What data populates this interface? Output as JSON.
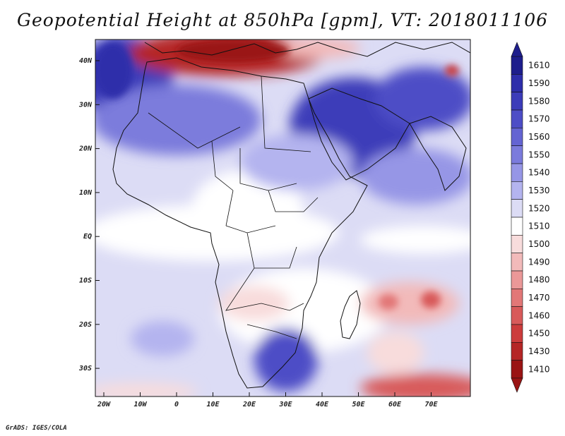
{
  "title": "Geopotential Height at 850hPa [gpm], VT: 2018011106",
  "credit": "GrADS: IGES/COLA",
  "map": {
    "lat_ticks": [
      "40N",
      "30N",
      "20N",
      "10N",
      "EQ",
      "10S",
      "20S",
      "30S"
    ],
    "lon_ticks": [
      "20W",
      "10W",
      "0",
      "10E",
      "20E",
      "30E",
      "40E",
      "50E",
      "60E",
      "70E"
    ],
    "base_color": "#dcdcf5"
  },
  "colorbar": {
    "labels": [
      "1610",
      "1590",
      "1580",
      "1570",
      "1560",
      "1550",
      "1540",
      "1530",
      "1520",
      "1510",
      "1500",
      "1490",
      "1480",
      "1470",
      "1460",
      "1450",
      "1430",
      "1410"
    ],
    "colors": [
      "#1e1e8c",
      "#2e2eaa",
      "#3c3cb9",
      "#4d4dc6",
      "#6464d2",
      "#7b7bdc",
      "#9696e6",
      "#b4b4ef",
      "#dcdcf5",
      "#ffffff",
      "#f8dcdc",
      "#f2baba",
      "#eb9898",
      "#e27777",
      "#d85a5a",
      "#cc3c3c",
      "#b52626",
      "#9a1414"
    ]
  }
}
